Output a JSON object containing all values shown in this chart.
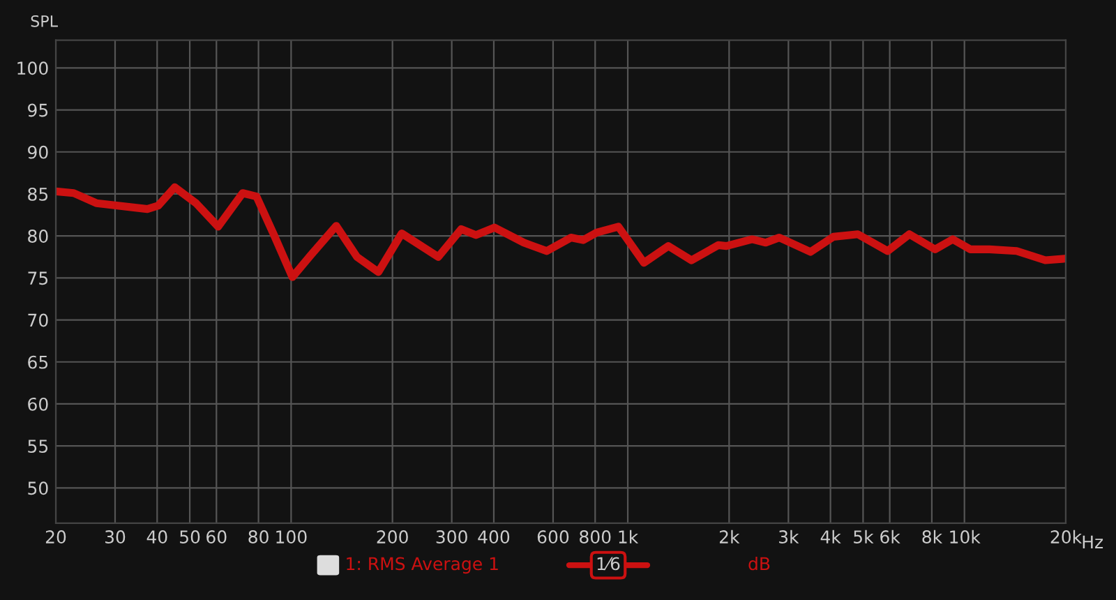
{
  "chart_data": {
    "type": "line",
    "ylabel": "SPL",
    "log": "x",
    "x": [
      20,
      22.6,
      26.4,
      37.4,
      40.3,
      45.1,
      52.2,
      60.7,
      71.8,
      78.9,
      89.2,
      100.9,
      114.9,
      136.2,
      156.9,
      181.7,
      213,
      273.6,
      319.9,
      354,
      402,
      491,
      574,
      678,
      737,
      808,
      938,
      1117,
      1320,
      1545,
      1857,
      1963,
      2341,
      2569,
      2818,
      3488,
      4081,
      4823,
      5915,
      6862,
      8183,
      9231,
      10413,
      11856,
      14289,
      17389,
      20000
    ],
    "series": [
      {
        "name": "1: RMS Average 1",
        "color": "#cc1111",
        "values": [
          85.3,
          85.1,
          83.9,
          83.2,
          83.6,
          85.8,
          83.9,
          81.1,
          85.1,
          84.7,
          80,
          75.1,
          77.8,
          81.2,
          77.5,
          75.7,
          80.3,
          77.5,
          80.8,
          80.1,
          81,
          79.2,
          78.2,
          79.8,
          79.5,
          80.4,
          81.1,
          76.8,
          78.8,
          77.1,
          78.9,
          78.8,
          79.6,
          79.2,
          79.8,
          78.1,
          79.9,
          80.2,
          78.2,
          80.2,
          78.4,
          79.6,
          78.4,
          78.4,
          78.2,
          77.1,
          77.3
        ]
      }
    ],
    "xlim": [
      20,
      20000
    ],
    "ylim": [
      45.8,
      103.3
    ],
    "xticks": [
      20,
      30,
      40,
      50,
      60,
      80,
      100,
      200,
      300,
      400,
      600,
      800,
      {
        "value": 1000,
        "label": "1k"
      },
      {
        "value": 2000,
        "label": "2k"
      },
      {
        "value": 3000,
        "label": "3k"
      },
      {
        "value": 4000,
        "label": "4k"
      },
      {
        "value": 5000,
        "label": "5k"
      },
      {
        "value": 6000,
        "label": "6k"
      },
      {
        "value": 8000,
        "label": "8k"
      },
      {
        "value": 10000,
        "label": "10k"
      },
      {
        "value": 20000,
        "label": "20k"
      }
    ],
    "xlabel": "Hz",
    "yticks": [
      50,
      55,
      60,
      65,
      70,
      75,
      80,
      85,
      90,
      95,
      100
    ],
    "grid": true,
    "legend": "bottom",
    "marker": "none",
    "line_style": "solid",
    "annotations": [
      "1⁄6",
      "dB"
    ]
  }
}
